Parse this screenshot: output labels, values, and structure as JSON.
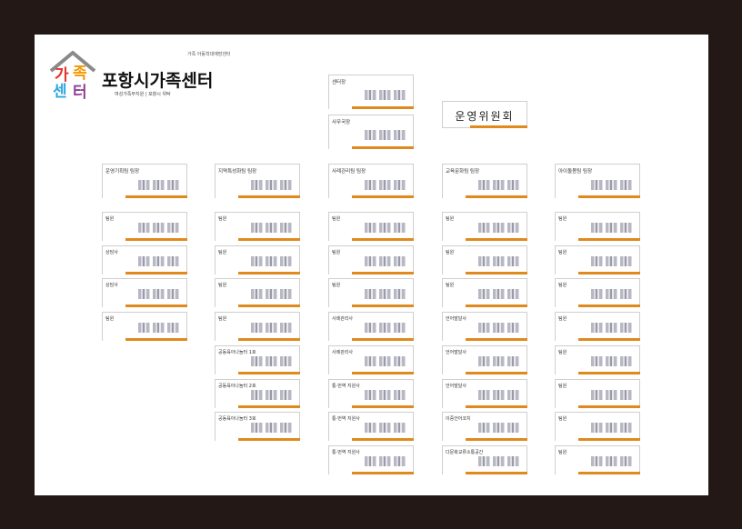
{
  "logo": {
    "wordmark": "가족센터",
    "title": "포항시가족센터",
    "subtitle": "여성가족부지원 | 포항시 위탁",
    "brand": "가족 아동학대예방센터"
  },
  "committee_label": "운영위원회",
  "top_boxes": [
    {
      "id": "center-director",
      "label": "센터장"
    },
    {
      "id": "secretary-general",
      "label": "사무국장"
    }
  ],
  "teams": [
    {
      "head": "운영기획팀 팀장",
      "members": [
        "팀원",
        "상담사",
        "상담사",
        "팀원"
      ]
    },
    {
      "head": "지역특성화팀 팀장",
      "members": [
        "팀원",
        "팀원",
        "팀원",
        "팀원",
        "공동육아나눔터 1호",
        "공동육아나눔터 2호",
        "공동육아나눔터 3호"
      ]
    },
    {
      "head": "사례관리팀 팀장",
      "members": [
        "팀원",
        "팀원",
        "팀원",
        "사례관리사",
        "사례관리사",
        "통·번역 지원사",
        "통·번역 지원사",
        "통·번역 지원사"
      ]
    },
    {
      "head": "교육문화팀 팀장",
      "members": [
        "팀원",
        "팀원",
        "팀원",
        "언어발달사",
        "언어발달사",
        "언어발달사",
        "이중언어코치",
        "다문화교류소통공간"
      ]
    },
    {
      "head": "아이돌봄팀 팀장",
      "members": [
        "팀원",
        "팀원",
        "팀원",
        "팀원",
        "팀원",
        "팀원",
        "팀원",
        "팀원"
      ]
    }
  ]
}
